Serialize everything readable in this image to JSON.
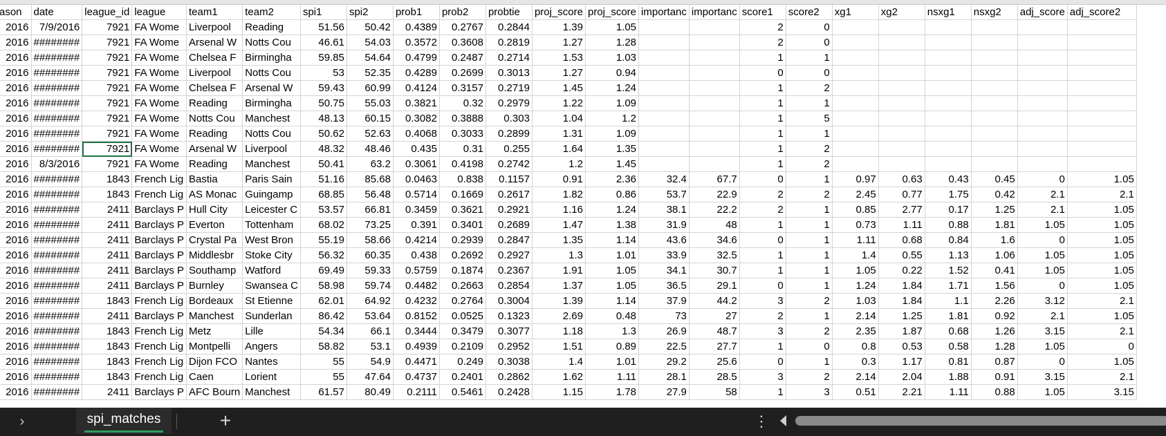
{
  "sheet": {
    "headers": [
      "ason",
      "date",
      "league_id",
      "league",
      "team1",
      "team2",
      "spi1",
      "spi2",
      "prob1",
      "prob2",
      "probtie",
      "proj_score",
      "proj_score",
      "importanc",
      "importanc",
      "score1",
      "score2",
      "xg1",
      "xg2",
      "nsxg1",
      "nsxg2",
      "adj_score",
      "adj_score2"
    ],
    "rows": [
      [
        "2016",
        "7/9/2016",
        "7921",
        "FA Wome",
        "Liverpool",
        "Reading",
        "51.56",
        "50.42",
        "0.4389",
        "0.2767",
        "0.2844",
        "1.39",
        "1.05",
        "",
        "",
        "2",
        "0",
        "",
        "",
        "",
        "",
        "",
        ""
      ],
      [
        "2016",
        "########",
        "7921",
        "FA Wome",
        "Arsenal W",
        "Notts Cou",
        "46.61",
        "54.03",
        "0.3572",
        "0.3608",
        "0.2819",
        "1.27",
        "1.28",
        "",
        "",
        "2",
        "0",
        "",
        "",
        "",
        "",
        "",
        ""
      ],
      [
        "2016",
        "########",
        "7921",
        "FA Wome",
        "Chelsea F",
        "Birmingha",
        "59.85",
        "54.64",
        "0.4799",
        "0.2487",
        "0.2714",
        "1.53",
        "1.03",
        "",
        "",
        "1",
        "1",
        "",
        "",
        "",
        "",
        "",
        ""
      ],
      [
        "2016",
        "########",
        "7921",
        "FA Wome",
        "Liverpool",
        "Notts Cou",
        "53",
        "52.35",
        "0.4289",
        "0.2699",
        "0.3013",
        "1.27",
        "0.94",
        "",
        "",
        "0",
        "0",
        "",
        "",
        "",
        "",
        "",
        ""
      ],
      [
        "2016",
        "########",
        "7921",
        "FA Wome",
        "Chelsea F",
        "Arsenal W",
        "59.43",
        "60.99",
        "0.4124",
        "0.3157",
        "0.2719",
        "1.45",
        "1.24",
        "",
        "",
        "1",
        "2",
        "",
        "",
        "",
        "",
        "",
        ""
      ],
      [
        "2016",
        "########",
        "7921",
        "FA Wome",
        "Reading",
        "Birmingha",
        "50.75",
        "55.03",
        "0.3821",
        "0.32",
        "0.2979",
        "1.22",
        "1.09",
        "",
        "",
        "1",
        "1",
        "",
        "",
        "",
        "",
        "",
        ""
      ],
      [
        "2016",
        "########",
        "7921",
        "FA Wome",
        "Notts Cou",
        "Manchest",
        "48.13",
        "60.15",
        "0.3082",
        "0.3888",
        "0.303",
        "1.04",
        "1.2",
        "",
        "",
        "1",
        "5",
        "",
        "",
        "",
        "",
        "",
        ""
      ],
      [
        "2016",
        "########",
        "7921",
        "FA Wome",
        "Reading",
        "Notts Cou",
        "50.62",
        "52.63",
        "0.4068",
        "0.3033",
        "0.2899",
        "1.31",
        "1.09",
        "",
        "",
        "1",
        "1",
        "",
        "",
        "",
        "",
        "",
        ""
      ],
      [
        "2016",
        "########",
        "7921",
        "FA Wome",
        "Arsenal W",
        "Liverpool",
        "48.32",
        "48.46",
        "0.435",
        "0.31",
        "0.255",
        "1.64",
        "1.35",
        "",
        "",
        "1",
        "2",
        "",
        "",
        "",
        "",
        "",
        ""
      ],
      [
        "2016",
        "8/3/2016",
        "7921",
        "FA Wome",
        "Reading",
        "Manchest",
        "50.41",
        "63.2",
        "0.3061",
        "0.4198",
        "0.2742",
        "1.2",
        "1.45",
        "",
        "",
        "1",
        "2",
        "",
        "",
        "",
        "",
        "",
        ""
      ],
      [
        "2016",
        "########",
        "1843",
        "French Lig",
        "Bastia",
        "Paris Sain",
        "51.16",
        "85.68",
        "0.0463",
        "0.838",
        "0.1157",
        "0.91",
        "2.36",
        "32.4",
        "67.7",
        "0",
        "1",
        "0.97",
        "0.63",
        "0.43",
        "0.45",
        "0",
        "1.05"
      ],
      [
        "2016",
        "########",
        "1843",
        "French Lig",
        "AS Monac",
        "Guingamp",
        "68.85",
        "56.48",
        "0.5714",
        "0.1669",
        "0.2617",
        "1.82",
        "0.86",
        "53.7",
        "22.9",
        "2",
        "2",
        "2.45",
        "0.77",
        "1.75",
        "0.42",
        "2.1",
        "2.1"
      ],
      [
        "2016",
        "########",
        "2411",
        "Barclays P",
        "Hull City",
        "Leicester C",
        "53.57",
        "66.81",
        "0.3459",
        "0.3621",
        "0.2921",
        "1.16",
        "1.24",
        "38.1",
        "22.2",
        "2",
        "1",
        "0.85",
        "2.77",
        "0.17",
        "1.25",
        "2.1",
        "1.05"
      ],
      [
        "2016",
        "########",
        "2411",
        "Barclays P",
        "Everton",
        "Tottenham",
        "68.02",
        "73.25",
        "0.391",
        "0.3401",
        "0.2689",
        "1.47",
        "1.38",
        "31.9",
        "48",
        "1",
        "1",
        "0.73",
        "1.11",
        "0.88",
        "1.81",
        "1.05",
        "1.05"
      ],
      [
        "2016",
        "########",
        "2411",
        "Barclays P",
        "Crystal Pa",
        "West Bron",
        "55.19",
        "58.66",
        "0.4214",
        "0.2939",
        "0.2847",
        "1.35",
        "1.14",
        "43.6",
        "34.6",
        "0",
        "1",
        "1.11",
        "0.68",
        "0.84",
        "1.6",
        "0",
        "1.05"
      ],
      [
        "2016",
        "########",
        "2411",
        "Barclays P",
        "Middlesbr",
        "Stoke City",
        "56.32",
        "60.35",
        "0.438",
        "0.2692",
        "0.2927",
        "1.3",
        "1.01",
        "33.9",
        "32.5",
        "1",
        "1",
        "1.4",
        "0.55",
        "1.13",
        "1.06",
        "1.05",
        "1.05"
      ],
      [
        "2016",
        "########",
        "2411",
        "Barclays P",
        "Southamp",
        "Watford",
        "69.49",
        "59.33",
        "0.5759",
        "0.1874",
        "0.2367",
        "1.91",
        "1.05",
        "34.1",
        "30.7",
        "1",
        "1",
        "1.05",
        "0.22",
        "1.52",
        "0.41",
        "1.05",
        "1.05"
      ],
      [
        "2016",
        "########",
        "2411",
        "Barclays P",
        "Burnley",
        "Swansea C",
        "58.98",
        "59.74",
        "0.4482",
        "0.2663",
        "0.2854",
        "1.37",
        "1.05",
        "36.5",
        "29.1",
        "0",
        "1",
        "1.24",
        "1.84",
        "1.71",
        "1.56",
        "0",
        "1.05"
      ],
      [
        "2016",
        "########",
        "1843",
        "French Lig",
        "Bordeaux",
        "St Etienne",
        "62.01",
        "64.92",
        "0.4232",
        "0.2764",
        "0.3004",
        "1.39",
        "1.14",
        "37.9",
        "44.2",
        "3",
        "2",
        "1.03",
        "1.84",
        "1.1",
        "2.26",
        "3.12",
        "2.1"
      ],
      [
        "2016",
        "########",
        "2411",
        "Barclays P",
        "Manchest",
        "Sunderlan",
        "86.42",
        "53.64",
        "0.8152",
        "0.0525",
        "0.1323",
        "2.69",
        "0.48",
        "73",
        "27",
        "2",
        "1",
        "2.14",
        "1.25",
        "1.81",
        "0.92",
        "2.1",
        "1.05"
      ],
      [
        "2016",
        "########",
        "1843",
        "French Lig",
        "Metz",
        "Lille",
        "54.34",
        "66.1",
        "0.3444",
        "0.3479",
        "0.3077",
        "1.18",
        "1.3",
        "26.9",
        "48.7",
        "3",
        "2",
        "2.35",
        "1.87",
        "0.68",
        "1.26",
        "3.15",
        "2.1"
      ],
      [
        "2016",
        "########",
        "1843",
        "French Lig",
        "Montpelli",
        "Angers",
        "58.82",
        "53.1",
        "0.4939",
        "0.2109",
        "0.2952",
        "1.51",
        "0.89",
        "22.5",
        "27.7",
        "1",
        "0",
        "0.8",
        "0.53",
        "0.58",
        "1.28",
        "1.05",
        "0"
      ],
      [
        "2016",
        "########",
        "1843",
        "French Lig",
        "Dijon FCO",
        "Nantes",
        "55",
        "54.9",
        "0.4471",
        "0.249",
        "0.3038",
        "1.4",
        "1.01",
        "29.2",
        "25.6",
        "0",
        "1",
        "0.3",
        "1.17",
        "0.81",
        "0.87",
        "0",
        "1.05"
      ],
      [
        "2016",
        "########",
        "1843",
        "French Lig",
        "Caen",
        "Lorient",
        "55",
        "47.64",
        "0.4737",
        "0.2401",
        "0.2862",
        "1.62",
        "1.11",
        "28.1",
        "28.5",
        "3",
        "2",
        "2.14",
        "2.04",
        "1.88",
        "0.91",
        "3.15",
        "2.1"
      ],
      [
        "2016",
        "########",
        "2411",
        "Barclays P",
        "AFC Bourn",
        "Manchest",
        "61.57",
        "80.49",
        "0.2111",
        "0.5461",
        "0.2428",
        "1.15",
        "1.78",
        "27.9",
        "58",
        "1",
        "3",
        "0.51",
        "2.21",
        "1.11",
        "0.88",
        "1.05",
        "3.15"
      ]
    ],
    "selected_cell": {
      "row": 8,
      "col": 2
    }
  },
  "tabbar": {
    "nav_icon": "›",
    "sheet_tab_label": "spi_matches",
    "add_icon": "+",
    "more_icon": "⋮"
  },
  "icons": {
    "nav": "chevron-right-icon",
    "add": "plus-icon",
    "more": "more-vertical-icon",
    "scroll_left": "triangle-left-icon"
  }
}
